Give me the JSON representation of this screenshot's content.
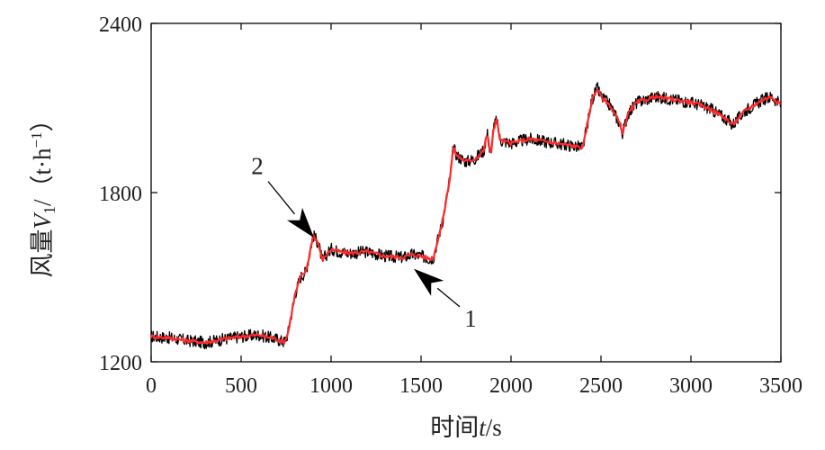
{
  "chart_data": {
    "type": "line",
    "title": "",
    "xlabel": {
      "prefix": "时间",
      "var": "t",
      "unit": "/s"
    },
    "ylabel": {
      "prefix": "风量",
      "var": "V",
      "sub": "1",
      "unit_open": "/（t·h",
      "unit_sup": "−1",
      "unit_close": "）"
    },
    "xlim": [
      0,
      3500
    ],
    "ylim": [
      1200,
      2400
    ],
    "xticks": [
      0,
      500,
      1000,
      1500,
      2000,
      2500,
      3000,
      3500
    ],
    "yticks": [
      1200,
      1800,
      2400
    ],
    "xtick_labels": [
      "0",
      "500",
      "1000",
      "1500",
      "2000",
      "2500",
      "3000",
      "3500"
    ],
    "ytick_labels": [
      "1200",
      "1800",
      "2400"
    ],
    "grid": false,
    "series": [
      {
        "color": "#000000",
        "noise_amplitude": 22,
        "x": [
          0,
          100,
          200,
          300,
          400,
          500,
          600,
          700,
          740,
          760,
          800,
          830,
          860,
          880,
          900,
          930,
          950,
          1000,
          1050,
          1100,
          1200,
          1300,
          1400,
          1450,
          1500,
          1550,
          1570,
          1580,
          1620,
          1660,
          1680,
          1700,
          1750,
          1800,
          1850,
          1860,
          1870,
          1880,
          1890,
          1900,
          1920,
          1940,
          2000,
          2100,
          2200,
          2300,
          2400,
          2430,
          2450,
          2480,
          2500,
          2550,
          2600,
          2620,
          2650,
          2700,
          2800,
          2900,
          3000,
          3100,
          3200,
          3230,
          3260,
          3300,
          3400,
          3450,
          3500
        ],
        "y": [
          1290,
          1285,
          1275,
          1268,
          1280,
          1290,
          1295,
          1280,
          1270,
          1300,
          1440,
          1500,
          1520,
          1580,
          1650,
          1620,
          1560,
          1600,
          1590,
          1585,
          1590,
          1575,
          1570,
          1580,
          1575,
          1565,
          1570,
          1600,
          1700,
          1850,
          1960,
          1930,
          1910,
          1920,
          1950,
          1990,
          2010,
          1950,
          1940,
          2020,
          2060,
          1985,
          1975,
          1990,
          1980,
          1970,
          1960,
          2060,
          2130,
          2170,
          2140,
          2110,
          2050,
          2010,
          2080,
          2120,
          2140,
          2130,
          2120,
          2100,
          2060,
          2040,
          2060,
          2090,
          2130,
          2140,
          2110
        ]
      },
      {
        "color": "#ff2a2a",
        "noise_amplitude": 7,
        "x": [
          0,
          100,
          200,
          300,
          400,
          500,
          600,
          700,
          740,
          760,
          800,
          830,
          860,
          880,
          900,
          930,
          950,
          1000,
          1050,
          1100,
          1200,
          1300,
          1400,
          1450,
          1500,
          1550,
          1570,
          1580,
          1620,
          1660,
          1680,
          1700,
          1750,
          1800,
          1850,
          1860,
          1870,
          1880,
          1890,
          1900,
          1920,
          1940,
          2000,
          2100,
          2200,
          2300,
          2400,
          2430,
          2450,
          2480,
          2500,
          2550,
          2600,
          2620,
          2650,
          2700,
          2800,
          2900,
          3000,
          3100,
          3200,
          3230,
          3260,
          3300,
          3400,
          3450,
          3500
        ],
        "y": [
          1290,
          1285,
          1275,
          1268,
          1280,
          1290,
          1295,
          1280,
          1270,
          1300,
          1440,
          1500,
          1520,
          1580,
          1650,
          1620,
          1560,
          1600,
          1590,
          1585,
          1590,
          1575,
          1570,
          1580,
          1575,
          1565,
          1570,
          1600,
          1700,
          1850,
          1960,
          1930,
          1910,
          1920,
          1950,
          1990,
          2010,
          1950,
          1940,
          2020,
          2060,
          1985,
          1975,
          1990,
          1980,
          1970,
          1960,
          2060,
          2130,
          2170,
          2140,
          2110,
          2050,
          2010,
          2080,
          2120,
          2140,
          2130,
          2120,
          2100,
          2060,
          2040,
          2060,
          2090,
          2130,
          2140,
          2110
        ]
      }
    ],
    "annotations": [
      {
        "label": "1",
        "text_x": 1775,
        "text_y": 1325,
        "tip_x": 1460,
        "tip_y": 1530,
        "head_color": "#000000"
      },
      {
        "label": "2",
        "text_x": 590,
        "text_y": 1865,
        "tip_x": 905,
        "tip_y": 1640,
        "head_color": "#000000"
      }
    ]
  }
}
